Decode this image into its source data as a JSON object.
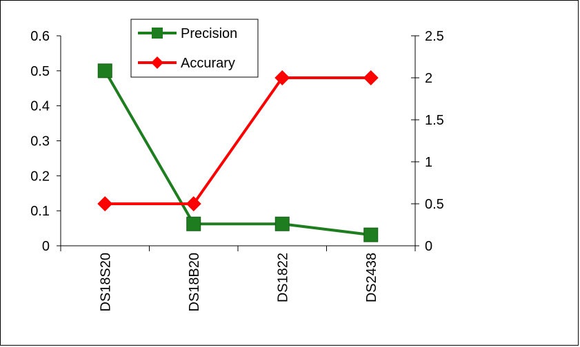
{
  "chart_data": {
    "type": "line",
    "categories": [
      "DS18S20",
      "DS18B20",
      "DS1822",
      "DS2438"
    ],
    "series": [
      {
        "name": "Precision",
        "axis": "left",
        "color": "#1e7d1e",
        "marker": "square",
        "values": [
          0.5,
          0.0625,
          0.0625,
          0.03125
        ]
      },
      {
        "name": "Accurary",
        "axis": "right",
        "color": "#ff0000",
        "marker": "diamond",
        "values": [
          0.5,
          0.5,
          2,
          2
        ]
      }
    ],
    "y_left": {
      "ticks": [
        "0",
        "0.1",
        "0.2",
        "0.3",
        "0.4",
        "0.5",
        "0.6"
      ],
      "range": [
        0,
        0.6
      ]
    },
    "y_right": {
      "ticks": [
        "0",
        "0.5",
        "1",
        "1.5",
        "2",
        "2.5"
      ],
      "range": [
        0,
        2.5
      ]
    },
    "legend_position": "top-center",
    "grid": false
  }
}
